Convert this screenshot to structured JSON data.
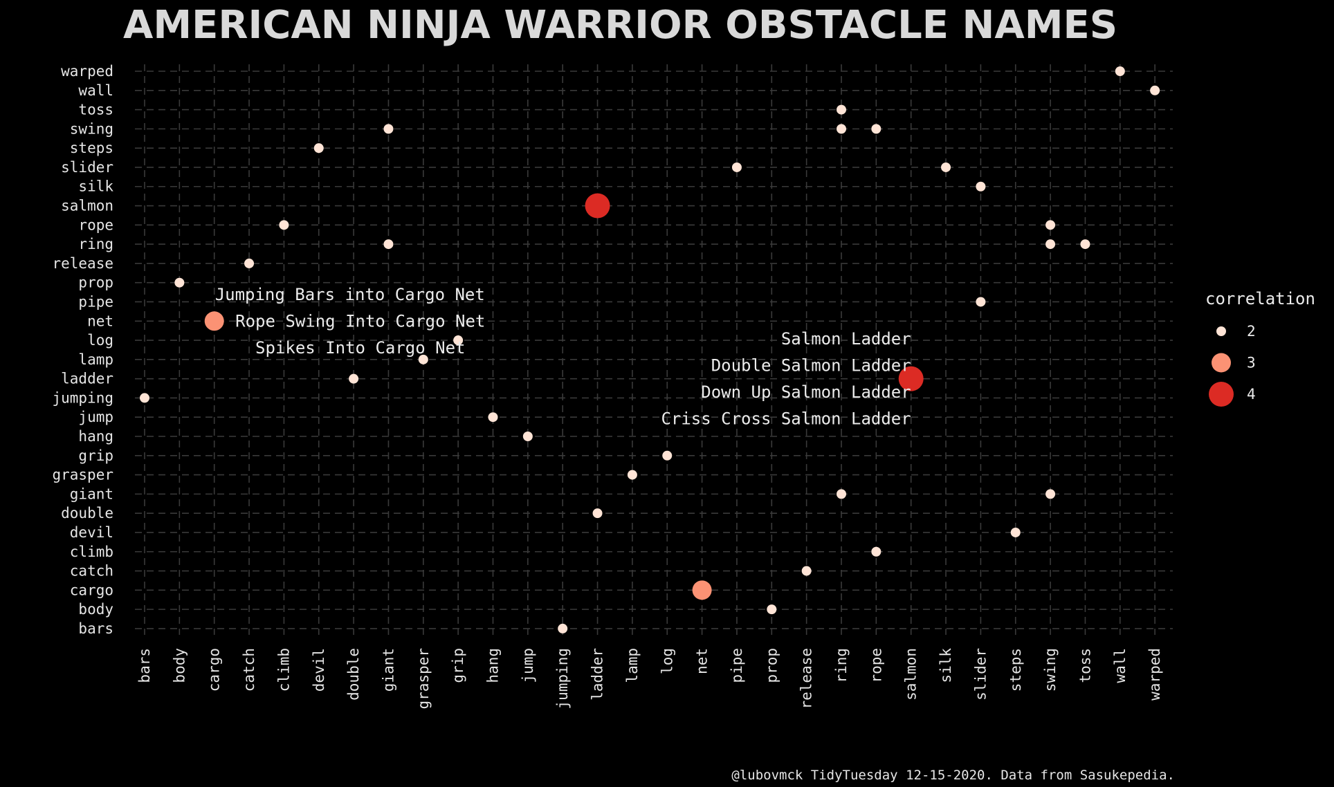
{
  "chart_data": {
    "type": "scatter",
    "title": "AMERICAN NINJA WARRIOR OBSTACLE NAMES",
    "caption": "@lubovmck TidyTuesday 12-15-2020. Data from Sasukepedia.",
    "x_categories": [
      "bars",
      "body",
      "cargo",
      "catch",
      "climb",
      "devil",
      "double",
      "giant",
      "grasper",
      "grip",
      "hang",
      "jump",
      "jumping",
      "ladder",
      "lamp",
      "log",
      "net",
      "pipe",
      "prop",
      "release",
      "ring",
      "rope",
      "salmon",
      "silk",
      "slider",
      "steps",
      "swing",
      "toss",
      "wall",
      "warped"
    ],
    "y_categories": [
      "bars",
      "body",
      "cargo",
      "catch",
      "climb",
      "devil",
      "double",
      "giant",
      "grasper",
      "grip",
      "hang",
      "jump",
      "jumping",
      "ladder",
      "lamp",
      "log",
      "net",
      "pipe",
      "prop",
      "release",
      "ring",
      "rope",
      "salmon",
      "silk",
      "slider",
      "steps",
      "swing",
      "toss",
      "wall",
      "warped"
    ],
    "legend": {
      "title": "correlation",
      "placement": "right",
      "entries": [
        {
          "label": "2",
          "value": 2,
          "color": "#ffe4d6"
        },
        {
          "label": "3",
          "value": 3,
          "color": "#fb9274"
        },
        {
          "label": "4",
          "value": 4,
          "color": "#dc2b24"
        }
      ]
    },
    "points": [
      {
        "x": "wall",
        "y": "warped",
        "correlation": 2
      },
      {
        "x": "warped",
        "y": "wall",
        "correlation": 2
      },
      {
        "x": "ring",
        "y": "toss",
        "correlation": 2
      },
      {
        "x": "giant",
        "y": "swing",
        "correlation": 2
      },
      {
        "x": "ring",
        "y": "swing",
        "correlation": 2
      },
      {
        "x": "rope",
        "y": "swing",
        "correlation": 2
      },
      {
        "x": "devil",
        "y": "steps",
        "correlation": 2
      },
      {
        "x": "pipe",
        "y": "slider",
        "correlation": 2
      },
      {
        "x": "silk",
        "y": "slider",
        "correlation": 2
      },
      {
        "x": "slider",
        "y": "silk",
        "correlation": 2
      },
      {
        "x": "ladder",
        "y": "salmon",
        "correlation": 4
      },
      {
        "x": "climb",
        "y": "rope",
        "correlation": 2
      },
      {
        "x": "swing",
        "y": "rope",
        "correlation": 2
      },
      {
        "x": "giant",
        "y": "ring",
        "correlation": 2
      },
      {
        "x": "swing",
        "y": "ring",
        "correlation": 2
      },
      {
        "x": "toss",
        "y": "ring",
        "correlation": 2
      },
      {
        "x": "catch",
        "y": "release",
        "correlation": 2
      },
      {
        "x": "body",
        "y": "prop",
        "correlation": 2
      },
      {
        "x": "slider",
        "y": "pipe",
        "correlation": 2
      },
      {
        "x": "cargo",
        "y": "net",
        "correlation": 3
      },
      {
        "x": "grip",
        "y": "log",
        "correlation": 2
      },
      {
        "x": "grasper",
        "y": "lamp",
        "correlation": 2
      },
      {
        "x": "double",
        "y": "ladder",
        "correlation": 2
      },
      {
        "x": "salmon",
        "y": "ladder",
        "correlation": 4
      },
      {
        "x": "bars",
        "y": "jumping",
        "correlation": 2
      },
      {
        "x": "hang",
        "y": "jump",
        "correlation": 2
      },
      {
        "x": "jump",
        "y": "hang",
        "correlation": 2
      },
      {
        "x": "log",
        "y": "grip",
        "correlation": 2
      },
      {
        "x": "lamp",
        "y": "grasper",
        "correlation": 2
      },
      {
        "x": "ring",
        "y": "giant",
        "correlation": 2
      },
      {
        "x": "swing",
        "y": "giant",
        "correlation": 2
      },
      {
        "x": "ladder",
        "y": "double",
        "correlation": 2
      },
      {
        "x": "steps",
        "y": "devil",
        "correlation": 2
      },
      {
        "x": "rope",
        "y": "climb",
        "correlation": 2
      },
      {
        "x": "release",
        "y": "catch",
        "correlation": 2
      },
      {
        "x": "net",
        "y": "cargo",
        "correlation": 3
      },
      {
        "x": "prop",
        "y": "body",
        "correlation": 2
      },
      {
        "x": "jumping",
        "y": "bars",
        "correlation": 2
      }
    ],
    "annotations": [
      {
        "x": "cargo",
        "y": "net",
        "align": "left",
        "lines": [
          "Jumping Bars into Cargo Net",
          "Rope Swing Into Cargo Net",
          "Spikes Into Cargo Net"
        ]
      },
      {
        "x": "salmon",
        "y": "ladder",
        "align": "right",
        "lines": [
          "Salmon Ladder",
          "Double Salmon Ladder",
          "Down Up Salmon Ladder",
          "Criss Cross Salmon Ladder"
        ]
      }
    ]
  }
}
